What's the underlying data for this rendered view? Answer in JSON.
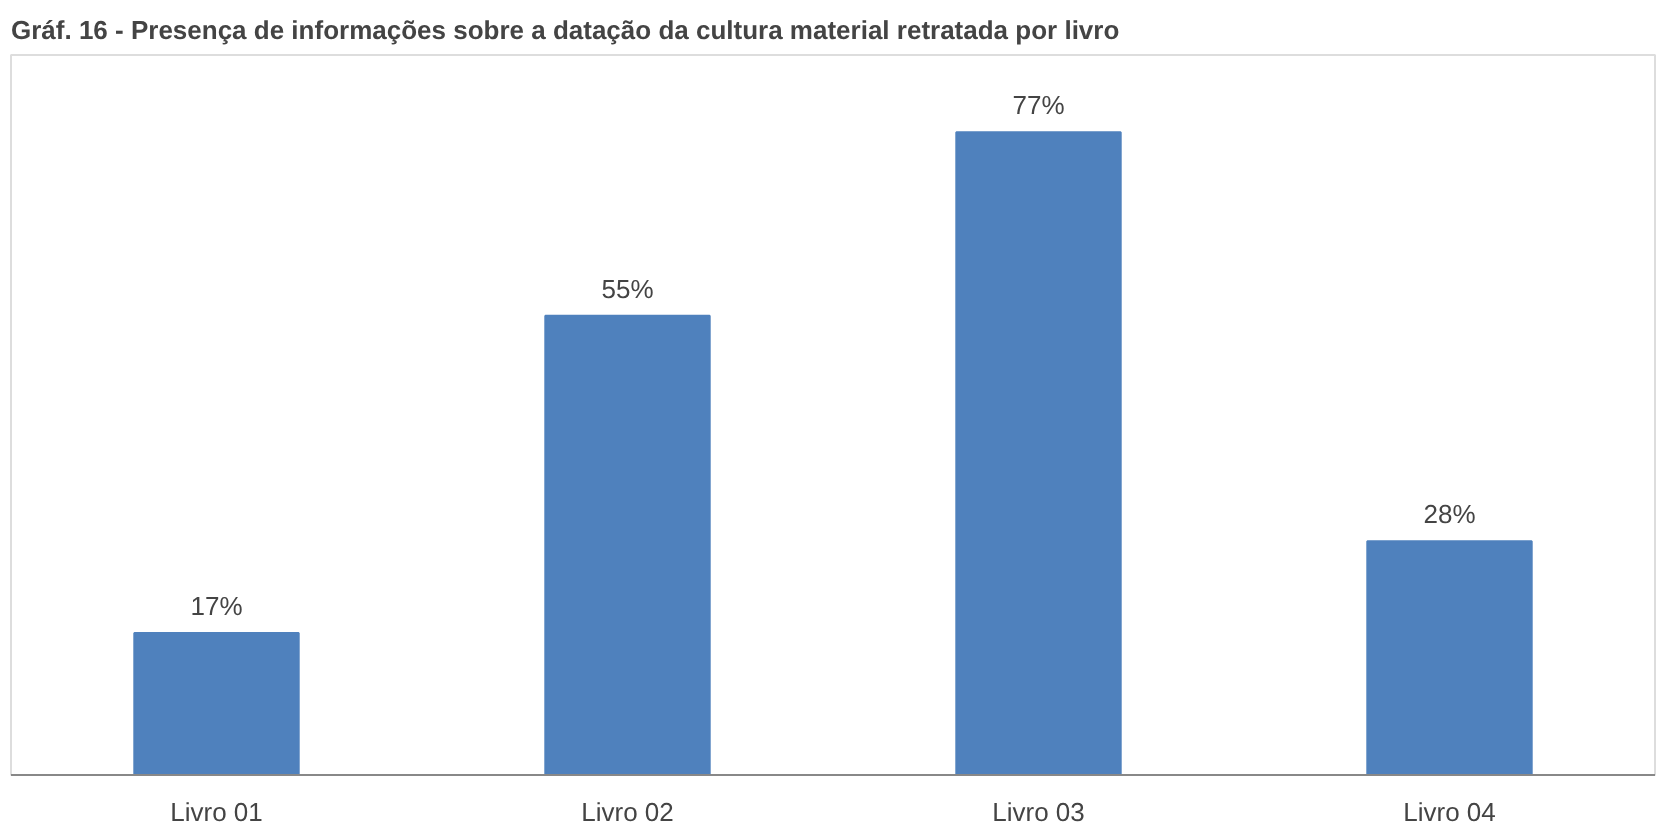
{
  "chart_data": {
    "type": "bar",
    "title": "Gráf. 16 - Presença de informações sobre a datação da cultura material retratada por livro",
    "categories": [
      "Livro 01",
      "Livro 02",
      "Livro 03",
      "Livro 04"
    ],
    "values": [
      17,
      55,
      77,
      28
    ],
    "value_labels": [
      "17%",
      "55%",
      "77%",
      "28%"
    ],
    "color": "#4f81bd",
    "grid": false
  }
}
